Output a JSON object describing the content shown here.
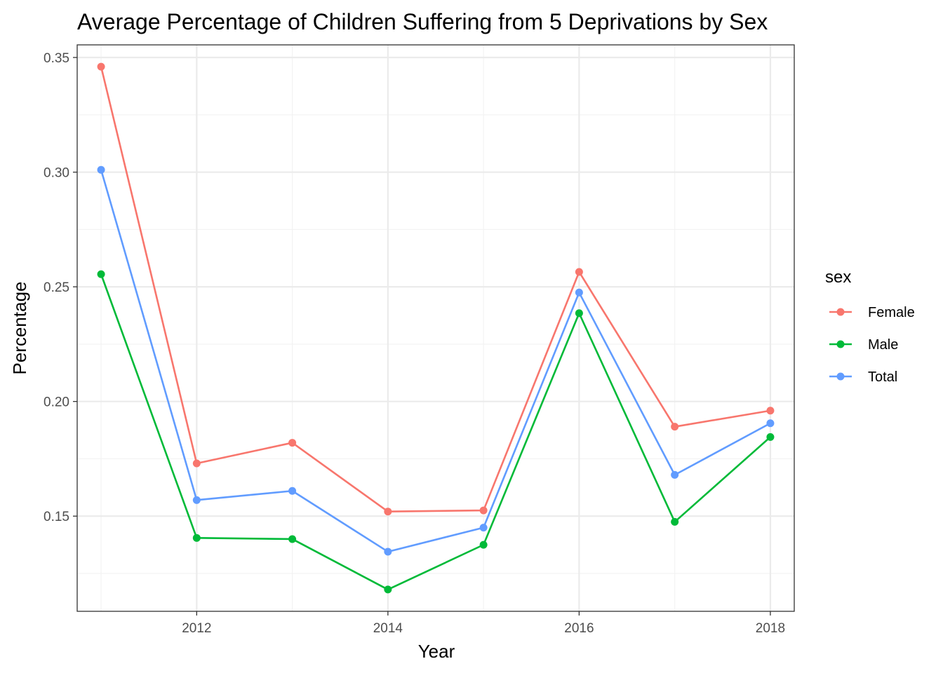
{
  "chart_data": {
    "type": "line",
    "title": "Average Percentage of Children Suffering from 5 Deprivations by Sex",
    "xlabel": "Year",
    "ylabel": "Percentage",
    "x": [
      2011,
      2012,
      2013,
      2014,
      2015,
      2016,
      2017,
      2018
    ],
    "xlim": [
      2010.75,
      2018.25
    ],
    "ylim": [
      0.1085,
      0.3555
    ],
    "x_ticks": [
      2012,
      2014,
      2016,
      2018
    ],
    "x_tick_labels": [
      "2012",
      "2014",
      "2016",
      "2018"
    ],
    "y_ticks": [
      0.15,
      0.2,
      0.25,
      0.3,
      0.35
    ],
    "y_tick_labels": [
      "0.15",
      "0.20",
      "0.25",
      "0.30",
      "0.35"
    ],
    "grid": true,
    "legend": {
      "title": "sex",
      "placement": "right"
    },
    "series": [
      {
        "name": "Female",
        "color": "#F8766D",
        "values": [
          0.346,
          0.173,
          0.182,
          0.152,
          0.1525,
          0.2565,
          0.189,
          0.196
        ]
      },
      {
        "name": "Male",
        "color": "#00BA38",
        "values": [
          0.2555,
          0.1405,
          0.14,
          0.118,
          0.1375,
          0.2385,
          0.1475,
          0.1845
        ]
      },
      {
        "name": "Total",
        "color": "#619CFF",
        "values": [
          0.301,
          0.157,
          0.161,
          0.1345,
          0.145,
          0.2475,
          0.168,
          0.1905
        ]
      }
    ]
  }
}
